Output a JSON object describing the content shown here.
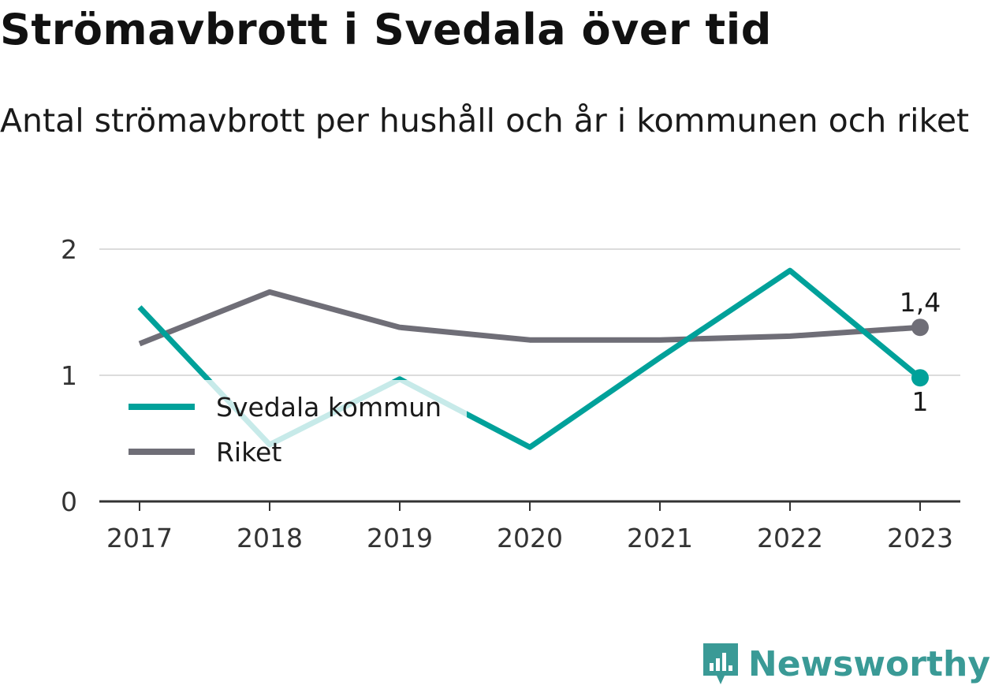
{
  "header": {
    "title": "Strömavbrott i Svedala över tid",
    "subtitle": "Antal strömavbrott per hushåll och år i kommunen och riket"
  },
  "brand": {
    "name": "Newsworthy",
    "icon": "newsworthy-logo-icon",
    "color": "#3a9a96"
  },
  "chart_data": {
    "type": "line",
    "title": "Strömavbrott i Svedala över tid",
    "subtitle": "Antal strömavbrott per hushåll och år i kommunen och riket",
    "categories": [
      "2017",
      "2018",
      "2019",
      "2020",
      "2021",
      "2022",
      "2023"
    ],
    "y_ticks": [
      "0",
      "1",
      "2"
    ],
    "ylim": [
      0,
      2
    ],
    "grid": true,
    "legend_position": "left",
    "series": [
      {
        "name": "Svedala kommun",
        "color": "#00a19a",
        "values": [
          1.54,
          0.45,
          0.97,
          0.43,
          1.14,
          1.83,
          0.98
        ],
        "end_label": "1"
      },
      {
        "name": "Riket",
        "color": "#6f6e77",
        "values": [
          1.25,
          1.66,
          1.38,
          1.28,
          1.28,
          1.31,
          1.38
        ],
        "end_label": "1,4"
      }
    ]
  }
}
